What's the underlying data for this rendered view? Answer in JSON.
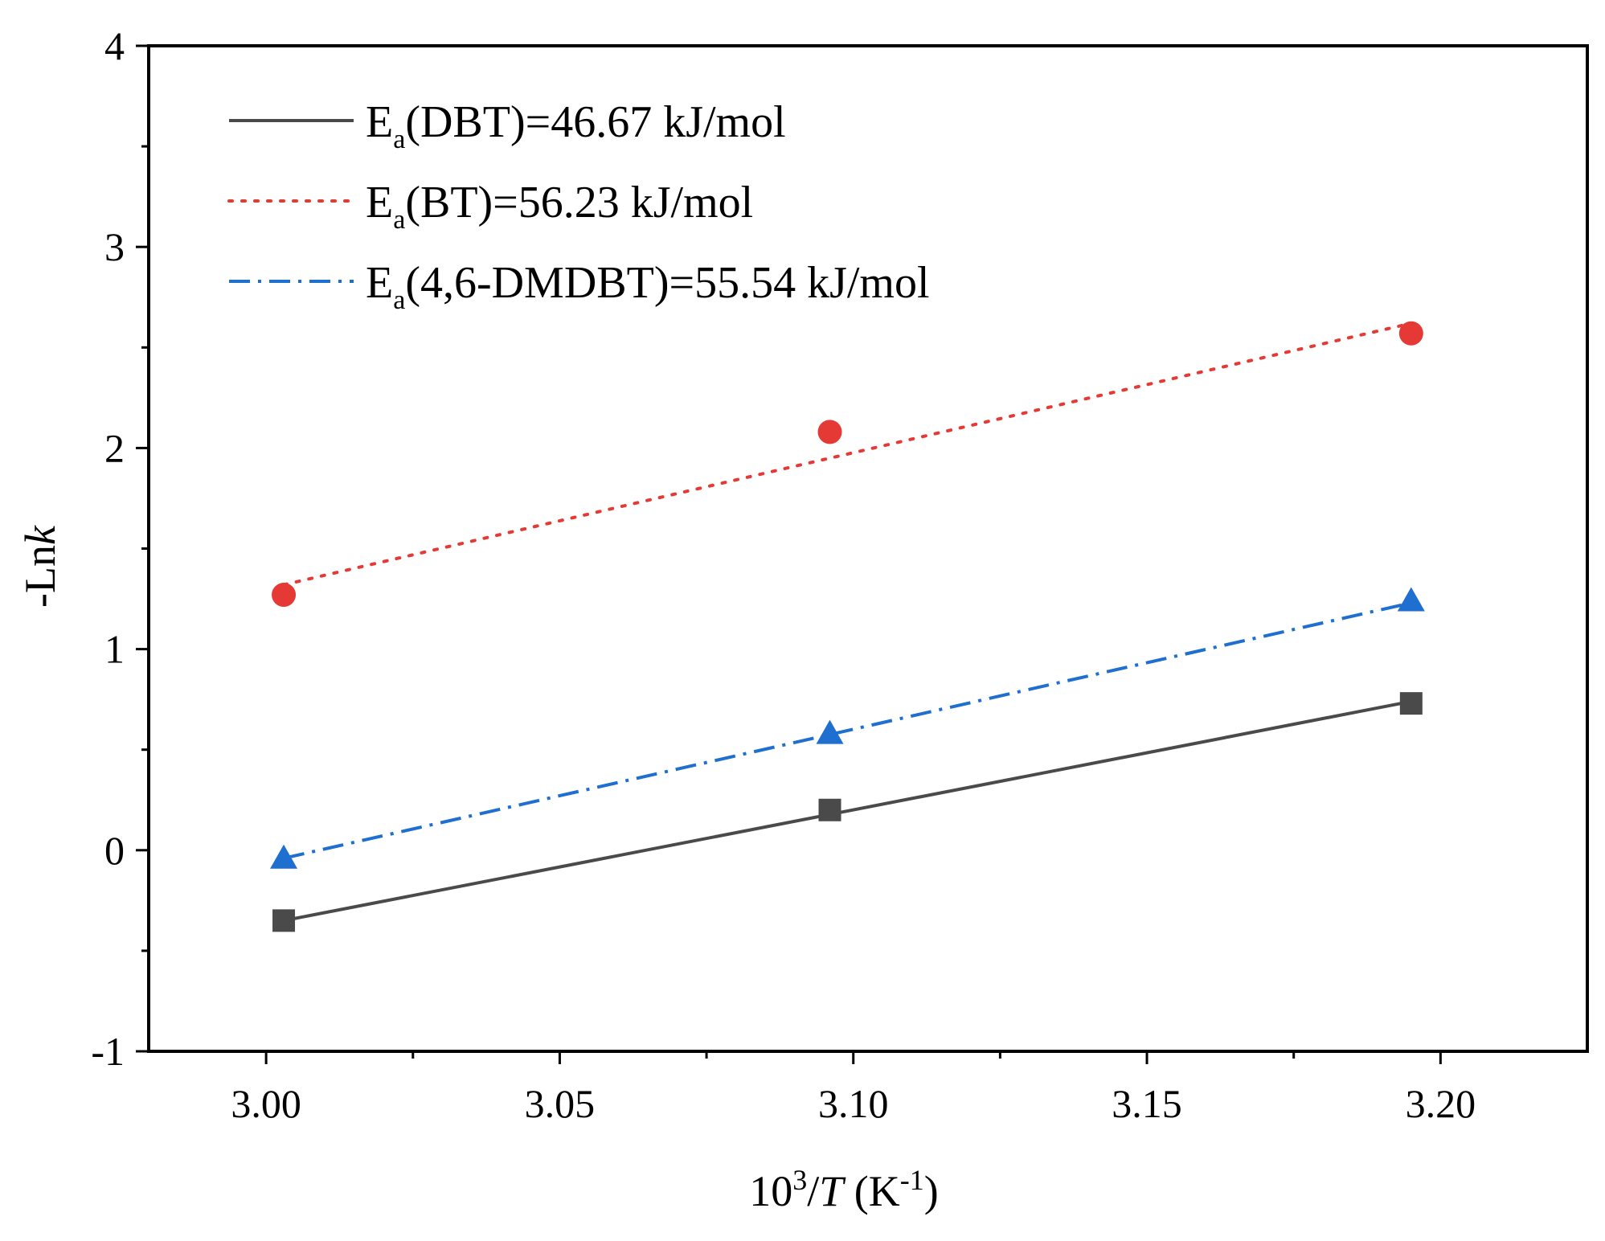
{
  "chart_data": {
    "type": "scatter",
    "title": "",
    "xlabel": {
      "base": "10",
      "sup": "3",
      "slash": "/",
      "var": "T",
      "unit_open": " (K",
      "unit_sup": "-1",
      "unit_close": ")"
    },
    "ylabel": {
      "prefix": "-Ln",
      "var": "k"
    },
    "xlim": [
      2.98,
      3.225
    ],
    "ylim": [
      -1,
      4
    ],
    "x_major_ticks": [
      3.0,
      3.05,
      3.1,
      3.15,
      3.2
    ],
    "x_tick_labels": [
      "3.00",
      "3.05",
      "3.10",
      "3.15",
      "3.20"
    ],
    "y_major_ticks": [
      -1,
      0,
      1,
      2,
      3,
      4
    ],
    "y_tick_labels": [
      "-1",
      "0",
      "1",
      "2",
      "3",
      "4"
    ],
    "legend_position": "top-left",
    "series": [
      {
        "name": "DBT",
        "legend": {
          "main": "E",
          "sub": "a",
          "rest": "(DBT)=46.67 kJ/mol"
        },
        "color": "#4a4a4a",
        "marker": "square",
        "line_style": "solid",
        "x": [
          3.003,
          3.096,
          3.195
        ],
        "y": [
          -0.35,
          0.2,
          0.73
        ],
        "fit": [
          [
            3.003,
            -0.35
          ],
          [
            3.195,
            0.74
          ]
        ]
      },
      {
        "name": "BT",
        "legend": {
          "main": "E",
          "sub": "a",
          "rest": "(BT)=56.23 kJ/mol"
        },
        "color": "#e53935",
        "marker": "circle",
        "line_style": "dotted",
        "x": [
          3.003,
          3.096,
          3.195
        ],
        "y": [
          1.27,
          2.08,
          2.57
        ],
        "fit": [
          [
            3.003,
            1.32
          ],
          [
            3.195,
            2.62
          ]
        ]
      },
      {
        "name": "4,6-DMDBT",
        "legend": {
          "main": "E",
          "sub": "a",
          "rest": "(4,6-DMDBT)=55.54 kJ/mol"
        },
        "color": "#1e6fd0",
        "marker": "triangle",
        "line_style": "dashdot",
        "x": [
          3.003,
          3.096,
          3.195
        ],
        "y": [
          -0.04,
          0.58,
          1.24
        ],
        "fit": [
          [
            3.003,
            -0.04
          ],
          [
            3.195,
            1.23
          ]
        ]
      }
    ]
  }
}
